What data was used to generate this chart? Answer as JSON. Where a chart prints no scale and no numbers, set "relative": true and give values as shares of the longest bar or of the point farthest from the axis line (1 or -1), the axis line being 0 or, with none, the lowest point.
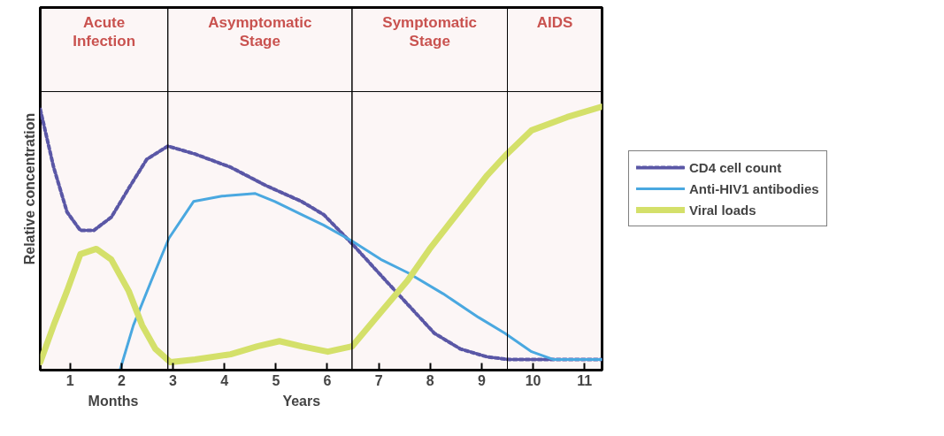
{
  "chart_data": {
    "type": "line",
    "relative": true,
    "ylabel": "Relative concentration",
    "xlim": [
      0.42,
      11.34
    ],
    "xticks": [
      1,
      2,
      3,
      4,
      5,
      6,
      7,
      8,
      9,
      10,
      11
    ],
    "annotations": [
      "Months",
      "Years"
    ],
    "bands": [
      {
        "axis": "x",
        "from": 0.42,
        "to": 2.9,
        "label": "Acute\nInfection",
        "color": "#c9524f"
      },
      {
        "axis": "x",
        "from": 2.9,
        "to": 6.48,
        "label": "Asymptomatic\nStage",
        "color": "#c9524f"
      },
      {
        "axis": "x",
        "from": 6.48,
        "to": 9.5,
        "label": "Symptomatic\nStage",
        "color": "#c9524f"
      },
      {
        "axis": "x",
        "from": 9.5,
        "to": 11.34,
        "label": "AIDS",
        "color": "#c9524f"
      }
    ],
    "legend": "right",
    "series": [
      {
        "name": "CD4 cell count",
        "color": "#5a57a6",
        "line_style": "dashed",
        "x": [
          0.42,
          0.68,
          0.94,
          1.2,
          1.46,
          1.8,
          2.14,
          2.49,
          2.9,
          3.43,
          4.12,
          4.81,
          5.5,
          5.93,
          6.48,
          7.04,
          7.56,
          8.08,
          8.59,
          9.11,
          9.54,
          9.97,
          11.34
        ],
        "values": [
          0.99,
          0.77,
          0.6,
          0.53,
          0.53,
          0.58,
          0.69,
          0.8,
          0.85,
          0.82,
          0.77,
          0.7,
          0.64,
          0.59,
          0.48,
          0.36,
          0.25,
          0.14,
          0.08,
          0.05,
          0.04,
          0.04,
          0.04
        ]
      },
      {
        "name": "Anti-HIV1 antibodies",
        "color": "#4aa8e0",
        "line_style": "solid",
        "x": [
          1.97,
          2.23,
          2.58,
          2.92,
          3.4,
          3.95,
          4.6,
          4.98,
          5.5,
          5.93,
          6.48,
          7.04,
          7.56,
          8.25,
          8.94,
          9.45,
          9.97,
          10.4,
          11.34
        ],
        "values": [
          0,
          0.17,
          0.34,
          0.5,
          0.64,
          0.66,
          0.67,
          0.64,
          0.59,
          0.55,
          0.49,
          0.42,
          0.37,
          0.29,
          0.2,
          0.14,
          0.07,
          0.04,
          0.04
        ]
      },
      {
        "name": "Viral loads",
        "color": "#d4e06a",
        "line_style": "solid",
        "x": [
          0.42,
          0.68,
          0.94,
          1.2,
          1.51,
          1.8,
          2.14,
          2.4,
          2.66,
          2.95,
          3.43,
          4.12,
          4.64,
          5.07,
          5.5,
          6.01,
          6.48,
          7.04,
          7.56,
          7.99,
          8.59,
          9.11,
          9.49,
          9.97,
          10.66,
          11.34
        ],
        "values": [
          0.03,
          0.17,
          0.3,
          0.44,
          0.46,
          0.42,
          0.3,
          0.17,
          0.08,
          0.03,
          0.04,
          0.06,
          0.09,
          0.11,
          0.09,
          0.07,
          0.09,
          0.22,
          0.34,
          0.46,
          0.61,
          0.74,
          0.82,
          0.91,
          0.96,
          1.0
        ]
      }
    ]
  }
}
